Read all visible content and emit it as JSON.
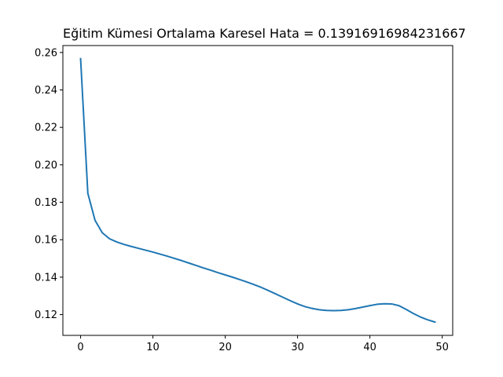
{
  "chart_data": {
    "type": "line",
    "title": "Eğitim Kümesi Ortalama Karesel Hata = 0.13916916984231667",
    "xlabel": "",
    "ylabel": "",
    "xlim": [
      -2.45,
      51.45
    ],
    "ylim": [
      0.1089,
      0.2637
    ],
    "x_ticks": [
      0,
      10,
      20,
      30,
      40,
      50
    ],
    "x_tick_labels": [
      "0",
      "10",
      "20",
      "30",
      "40",
      "50"
    ],
    "y_ticks": [
      0.12,
      0.14,
      0.16,
      0.18,
      0.2,
      0.22,
      0.24,
      0.26
    ],
    "y_tick_labels": [
      "0.12",
      "0.14",
      "0.16",
      "0.18",
      "0.20",
      "0.22",
      "0.24",
      "0.26"
    ],
    "grid": false,
    "series": [
      {
        "color": "#1f77b4",
        "x": [
          0,
          1,
          2,
          3,
          4,
          5,
          6,
          7,
          8,
          9,
          10,
          11,
          12,
          13,
          14,
          15,
          16,
          17,
          18,
          19,
          20,
          21,
          22,
          23,
          24,
          25,
          26,
          27,
          28,
          29,
          30,
          31,
          32,
          33,
          34,
          35,
          36,
          37,
          38,
          39,
          40,
          41,
          42,
          43,
          44,
          45,
          46,
          47,
          48,
          49
        ],
        "values": [
          0.2567,
          0.1848,
          0.1703,
          0.1637,
          0.1605,
          0.1588,
          0.1575,
          0.1564,
          0.1554,
          0.1544,
          0.1534,
          0.1523,
          0.1512,
          0.15,
          0.1488,
          0.1475,
          0.1462,
          0.1449,
          0.1437,
          0.1424,
          0.1412,
          0.14,
          0.1387,
          0.1374,
          0.136,
          0.1345,
          0.1328,
          0.131,
          0.1292,
          0.1274,
          0.1257,
          0.1243,
          0.1233,
          0.1226,
          0.1222,
          0.1221,
          0.1222,
          0.1226,
          0.1232,
          0.124,
          0.1248,
          0.1255,
          0.1258,
          0.1257,
          0.1248,
          0.1228,
          0.1206,
          0.1187,
          0.1172,
          0.116
        ]
      }
    ]
  }
}
